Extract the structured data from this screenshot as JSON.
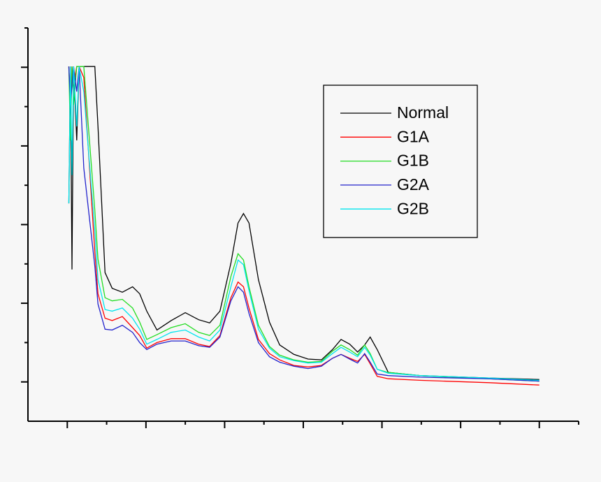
{
  "chart_data": {
    "type": "line",
    "x": [
      0.02,
      0.04,
      0.06,
      0.08,
      0.12,
      0.15,
      0.21,
      0.35,
      0.39,
      0.48,
      0.57,
      0.7,
      0.83,
      0.92,
      1.01,
      1.14,
      1.32,
      1.5,
      1.67,
      1.81,
      1.94,
      2.08,
      2.17,
      2.24,
      2.31,
      2.43,
      2.57,
      2.7,
      2.88,
      3.06,
      3.23,
      3.37,
      3.48,
      3.59,
      3.69,
      3.78,
      3.85,
      3.94,
      4.08,
      4.48,
      5.36,
      6.0
    ],
    "series": [
      {
        "name": "Normal",
        "color": "#000000",
        "values": [
          2.27,
          4.01,
          1.43,
          4.01,
          3.07,
          4.01,
          4.01,
          4.01,
          3.25,
          1.39,
          1.19,
          1.14,
          1.21,
          1.12,
          0.9,
          0.66,
          0.78,
          0.88,
          0.79,
          0.75,
          0.9,
          1.51,
          2.02,
          2.14,
          2.02,
          1.3,
          0.76,
          0.47,
          0.35,
          0.29,
          0.28,
          0.41,
          0.54,
          0.48,
          0.38,
          0.47,
          0.57,
          0.41,
          0.12,
          0.08,
          0.05,
          0.03
        ]
      },
      {
        "name": "G1A",
        "color": "#ff0000",
        "values": [
          4.01,
          3.52,
          4.01,
          3.78,
          4.01,
          4.01,
          3.87,
          1.65,
          1.12,
          0.81,
          0.78,
          0.83,
          0.69,
          0.59,
          0.43,
          0.5,
          0.55,
          0.55,
          0.48,
          0.45,
          0.59,
          1.07,
          1.27,
          1.21,
          0.94,
          0.54,
          0.36,
          0.28,
          0.21,
          0.19,
          0.21,
          0.3,
          0.35,
          0.3,
          0.26,
          0.35,
          0.23,
          0.07,
          0.04,
          0.02,
          -0.01,
          -0.04
        ]
      },
      {
        "name": "G1B",
        "color": "#22dd22",
        "values": [
          4.01,
          3.07,
          4.01,
          3.52,
          4.01,
          4.01,
          4.01,
          2.18,
          1.56,
          1.07,
          1.03,
          1.05,
          0.94,
          0.76,
          0.54,
          0.6,
          0.69,
          0.74,
          0.63,
          0.59,
          0.72,
          1.34,
          1.63,
          1.55,
          1.21,
          0.72,
          0.45,
          0.34,
          0.28,
          0.25,
          0.26,
          0.39,
          0.47,
          0.41,
          0.34,
          0.47,
          0.36,
          0.16,
          0.12,
          0.08,
          0.04,
          0.01
        ]
      },
      {
        "name": "G2A",
        "color": "#2222cc",
        "values": [
          4.01,
          3.52,
          3.78,
          4.01,
          3.69,
          4.01,
          2.72,
          1.47,
          0.99,
          0.67,
          0.66,
          0.72,
          0.63,
          0.5,
          0.41,
          0.48,
          0.52,
          0.52,
          0.46,
          0.44,
          0.57,
          1.03,
          1.21,
          1.14,
          0.87,
          0.5,
          0.32,
          0.25,
          0.2,
          0.17,
          0.2,
          0.3,
          0.35,
          0.29,
          0.24,
          0.36,
          0.25,
          0.1,
          0.08,
          0.06,
          0.04,
          0.01
        ]
      },
      {
        "name": "G2B",
        "color": "#00e5ee",
        "values": [
          2.27,
          4.01,
          2.63,
          4.01,
          3.25,
          4.01,
          3.69,
          1.92,
          1.3,
          0.92,
          0.9,
          0.94,
          0.81,
          0.67,
          0.48,
          0.54,
          0.63,
          0.66,
          0.57,
          0.52,
          0.66,
          1.21,
          1.55,
          1.49,
          1.16,
          0.67,
          0.43,
          0.32,
          0.27,
          0.24,
          0.25,
          0.36,
          0.44,
          0.38,
          0.32,
          0.44,
          0.34,
          0.16,
          0.11,
          0.08,
          0.05,
          0.02
        ]
      }
    ],
    "xlim": [
      -0.5,
      6.5
    ],
    "xticks": [
      0,
      0.5,
      1,
      1.5,
      2,
      2.5,
      3,
      3.5,
      4,
      4.5,
      5,
      5.5,
      6,
      6.5
    ],
    "ylim": [
      -0.5,
      4.5
    ],
    "yticks": [
      0,
      0.5,
      1,
      1.5,
      2,
      2.5,
      3,
      3.5,
      4,
      4.5
    ],
    "legend": "upper-right"
  }
}
